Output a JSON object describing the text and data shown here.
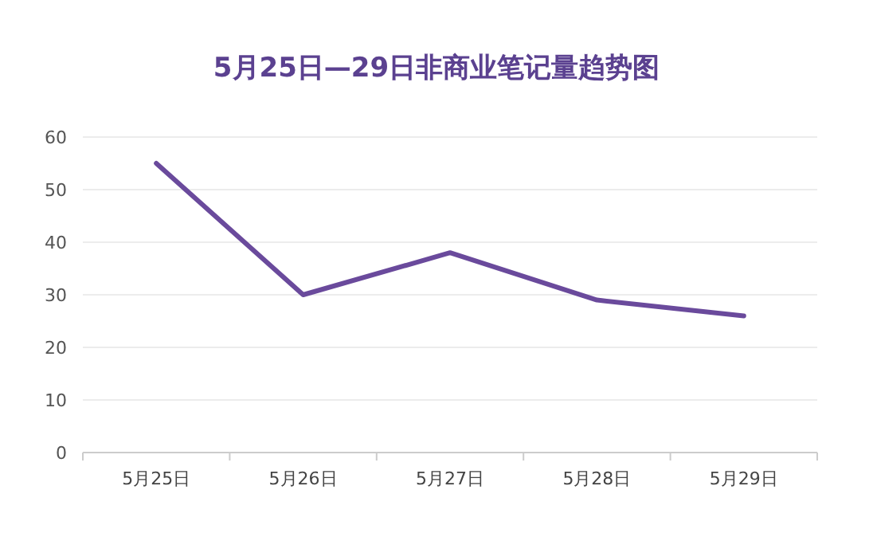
{
  "chart_data": {
    "type": "line",
    "title": "5月25日—29日非商业笔记量趋势图",
    "categories": [
      "5月25日",
      "5月26日",
      "5月27日",
      "5月28日",
      "5月29日"
    ],
    "series": [
      {
        "color": "#6a4a9c",
        "values": [
          55,
          30,
          38,
          29,
          26
        ]
      }
    ],
    "ylim": [
      0,
      60
    ],
    "yticks": [
      0,
      10,
      20,
      30,
      40,
      50,
      60
    ],
    "grid": "y",
    "marker": "none",
    "line_style": "solid"
  }
}
